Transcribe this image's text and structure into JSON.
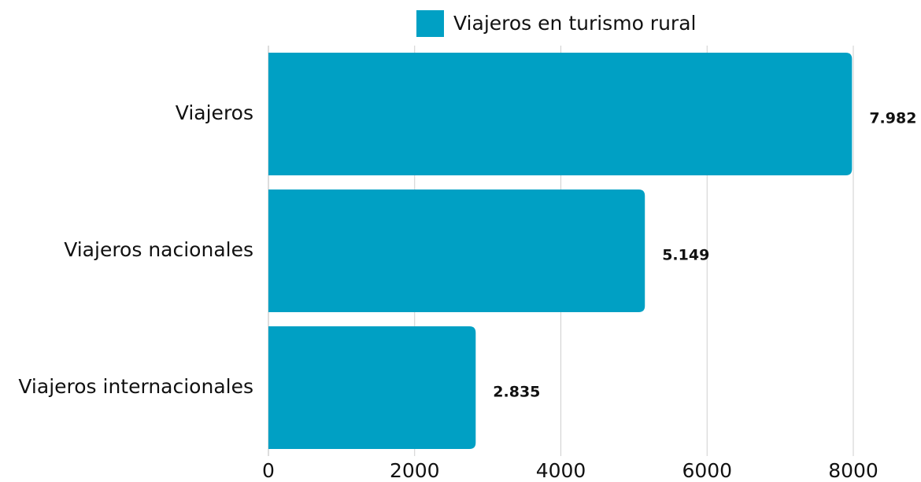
{
  "chart_data": {
    "type": "bar",
    "orientation": "horizontal",
    "categories": [
      "Viajeros",
      "Viajeros nacionales",
      "Viajeros internacionales"
    ],
    "series": [
      {
        "name": "Viajeros en turismo rural",
        "color": "#00a0c4",
        "values": [
          7982,
          5149,
          2835
        ],
        "value_labels": [
          "7.982",
          "5.149",
          "2.835"
        ]
      }
    ],
    "xlim": [
      0,
      8000
    ],
    "xticks": [
      0,
      2000,
      4000,
      6000,
      8000
    ],
    "grid": true,
    "legend": "top"
  }
}
